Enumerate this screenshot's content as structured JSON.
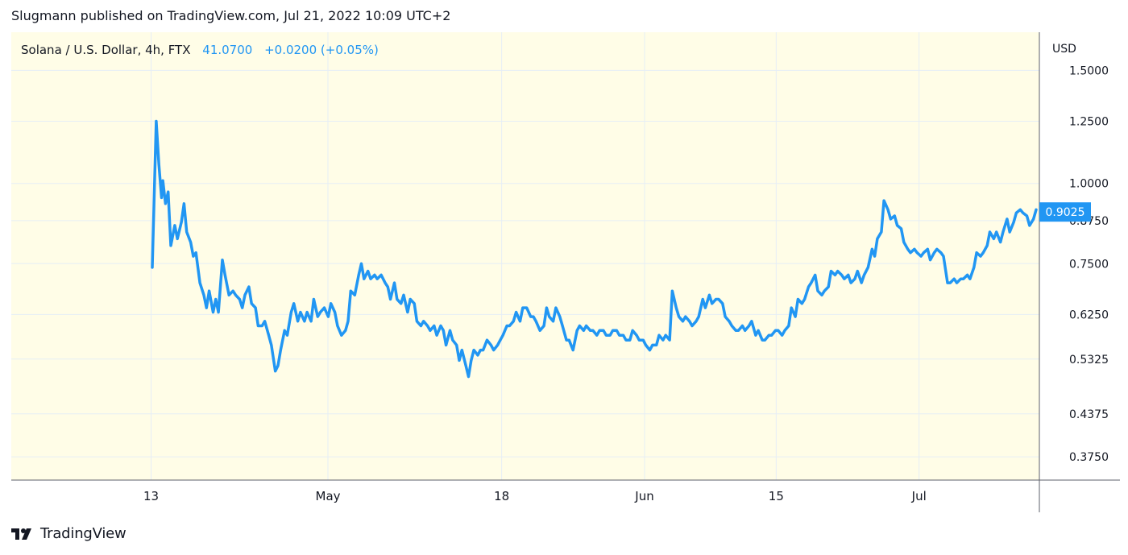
{
  "header": {
    "published_line": "Slugmann published on TradingView.com, Jul 21, 2022 10:09 UTC+2"
  },
  "legend": {
    "symbol": "Solana / U.S. Dollar, 4h, FTX",
    "last": "41.0700",
    "change": "+0.0200 (+0.05%)"
  },
  "axis": {
    "currency": "USD"
  },
  "footer": {
    "brand": "TradingView"
  },
  "colors": {
    "background": "#fffde7",
    "line": "#2196f3",
    "grid": "#e6eef6",
    "axis_text": "#131722"
  },
  "chart_data": {
    "type": "line",
    "title": "Solana / U.S. Dollar, 4h, FTX",
    "ylabel": "USD",
    "y_scale": "log",
    "ylim": [
      0.345,
      1.72
    ],
    "y_ticks": [
      "1.5000",
      "1.2500",
      "1.0000",
      "0.8750",
      "0.7500",
      "0.6250",
      "0.5325",
      "0.4375",
      "0.3750"
    ],
    "x_ticks": [
      {
        "label": "13",
        "t": 0.136
      },
      {
        "label": "May",
        "t": 0.308
      },
      {
        "label": "18",
        "t": 0.477
      },
      {
        "label": "Jun",
        "t": 0.616
      },
      {
        "label": "15",
        "t": 0.744
      },
      {
        "label": "Jul",
        "t": 0.883
      }
    ],
    "last_value_label": "0.9025",
    "grid": true,
    "series": [
      {
        "values": [
          [
            0.0,
            0.74
          ],
          [
            0.003,
            1.25
          ],
          [
            0.005,
            1.07
          ],
          [
            0.007,
            0.95
          ],
          [
            0.008,
            1.01
          ],
          [
            0.01,
            0.93
          ],
          [
            0.012,
            0.97
          ],
          [
            0.014,
            0.8
          ],
          [
            0.017,
            0.86
          ],
          [
            0.019,
            0.82
          ],
          [
            0.022,
            0.87
          ],
          [
            0.024,
            0.93
          ],
          [
            0.026,
            0.84
          ],
          [
            0.029,
            0.81
          ],
          [
            0.031,
            0.77
          ],
          [
            0.033,
            0.78
          ],
          [
            0.036,
            0.7
          ],
          [
            0.039,
            0.67
          ],
          [
            0.041,
            0.64
          ],
          [
            0.043,
            0.68
          ],
          [
            0.046,
            0.63
          ],
          [
            0.048,
            0.66
          ],
          [
            0.05,
            0.63
          ],
          [
            0.053,
            0.76
          ],
          [
            0.055,
            0.72
          ],
          [
            0.058,
            0.67
          ],
          [
            0.061,
            0.68
          ],
          [
            0.063,
            0.67
          ],
          [
            0.066,
            0.66
          ],
          [
            0.068,
            0.64
          ],
          [
            0.07,
            0.67
          ],
          [
            0.073,
            0.69
          ],
          [
            0.075,
            0.65
          ],
          [
            0.078,
            0.64
          ],
          [
            0.08,
            0.6
          ],
          [
            0.083,
            0.6
          ],
          [
            0.085,
            0.61
          ],
          [
            0.088,
            0.58
          ],
          [
            0.09,
            0.56
          ],
          [
            0.093,
            0.51
          ],
          [
            0.095,
            0.52
          ],
          [
            0.097,
            0.55
          ],
          [
            0.1,
            0.59
          ],
          [
            0.102,
            0.58
          ],
          [
            0.105,
            0.63
          ],
          [
            0.107,
            0.65
          ],
          [
            0.11,
            0.61
          ],
          [
            0.112,
            0.63
          ],
          [
            0.115,
            0.61
          ],
          [
            0.117,
            0.63
          ],
          [
            0.12,
            0.61
          ],
          [
            0.122,
            0.66
          ],
          [
            0.125,
            0.62
          ],
          [
            0.127,
            0.63
          ],
          [
            0.13,
            0.64
          ],
          [
            0.133,
            0.62
          ],
          [
            0.135,
            0.65
          ],
          [
            0.138,
            0.63
          ],
          [
            0.14,
            0.6
          ],
          [
            0.143,
            0.58
          ],
          [
            0.146,
            0.59
          ],
          [
            0.148,
            0.61
          ],
          [
            0.15,
            0.68
          ],
          [
            0.153,
            0.67
          ],
          [
            0.156,
            0.72
          ],
          [
            0.158,
            0.75
          ],
          [
            0.16,
            0.71
          ],
          [
            0.163,
            0.73
          ],
          [
            0.165,
            0.71
          ],
          [
            0.168,
            0.72
          ],
          [
            0.17,
            0.71
          ],
          [
            0.173,
            0.72
          ],
          [
            0.176,
            0.7
          ],
          [
            0.178,
            0.69
          ],
          [
            0.18,
            0.66
          ],
          [
            0.183,
            0.7
          ],
          [
            0.185,
            0.66
          ],
          [
            0.188,
            0.65
          ],
          [
            0.19,
            0.67
          ],
          [
            0.193,
            0.63
          ],
          [
            0.195,
            0.66
          ],
          [
            0.198,
            0.65
          ],
          [
            0.2,
            0.61
          ],
          [
            0.203,
            0.6
          ],
          [
            0.205,
            0.61
          ],
          [
            0.208,
            0.6
          ],
          [
            0.21,
            0.59
          ],
          [
            0.213,
            0.6
          ],
          [
            0.215,
            0.58
          ],
          [
            0.218,
            0.6
          ],
          [
            0.22,
            0.59
          ],
          [
            0.222,
            0.56
          ],
          [
            0.225,
            0.59
          ],
          [
            0.227,
            0.57
          ],
          [
            0.23,
            0.56
          ],
          [
            0.232,
            0.53
          ],
          [
            0.234,
            0.55
          ],
          [
            0.237,
            0.52
          ],
          [
            0.239,
            0.5
          ],
          [
            0.241,
            0.53
          ],
          [
            0.243,
            0.55
          ],
          [
            0.246,
            0.54
          ],
          [
            0.248,
            0.55
          ],
          [
            0.25,
            0.55
          ],
          [
            0.253,
            0.57
          ],
          [
            0.256,
            0.56
          ],
          [
            0.258,
            0.55
          ],
          [
            0.261,
            0.56
          ],
          [
            0.263,
            0.57
          ],
          [
            0.265,
            0.58
          ],
          [
            0.268,
            0.6
          ],
          [
            0.27,
            0.6
          ],
          [
            0.273,
            0.61
          ],
          [
            0.275,
            0.63
          ],
          [
            0.278,
            0.61
          ],
          [
            0.28,
            0.64
          ],
          [
            0.283,
            0.64
          ],
          [
            0.286,
            0.62
          ],
          [
            0.288,
            0.62
          ],
          [
            0.29,
            0.61
          ],
          [
            0.293,
            0.59
          ],
          [
            0.296,
            0.6
          ],
          [
            0.298,
            0.64
          ],
          [
            0.3,
            0.62
          ],
          [
            0.303,
            0.61
          ],
          [
            0.305,
            0.64
          ],
          [
            0.308,
            0.62
          ],
          [
            0.31,
            0.6
          ],
          [
            0.313,
            0.57
          ],
          [
            0.315,
            0.57
          ],
          [
            0.318,
            0.55
          ],
          [
            0.321,
            0.59
          ],
          [
            0.323,
            0.6
          ],
          [
            0.326,
            0.59
          ],
          [
            0.328,
            0.6
          ],
          [
            0.331,
            0.59
          ],
          [
            0.333,
            0.59
          ],
          [
            0.336,
            0.58
          ],
          [
            0.338,
            0.59
          ],
          [
            0.341,
            0.59
          ],
          [
            0.343,
            0.58
          ],
          [
            0.346,
            0.58
          ],
          [
            0.348,
            0.59
          ],
          [
            0.351,
            0.59
          ],
          [
            0.353,
            0.58
          ],
          [
            0.356,
            0.58
          ],
          [
            0.358,
            0.57
          ],
          [
            0.361,
            0.57
          ],
          [
            0.363,
            0.59
          ],
          [
            0.366,
            0.58
          ],
          [
            0.368,
            0.57
          ],
          [
            0.371,
            0.57
          ],
          [
            0.373,
            0.56
          ],
          [
            0.376,
            0.55
          ],
          [
            0.378,
            0.56
          ],
          [
            0.381,
            0.56
          ],
          [
            0.383,
            0.58
          ],
          [
            0.386,
            0.57
          ],
          [
            0.388,
            0.58
          ],
          [
            0.391,
            0.57
          ],
          [
            0.393,
            0.68
          ],
          [
            0.396,
            0.64
          ],
          [
            0.398,
            0.62
          ],
          [
            0.401,
            0.61
          ],
          [
            0.403,
            0.62
          ],
          [
            0.406,
            0.61
          ],
          [
            0.408,
            0.6
          ],
          [
            0.411,
            0.61
          ],
          [
            0.413,
            0.62
          ],
          [
            0.416,
            0.66
          ],
          [
            0.418,
            0.64
          ],
          [
            0.421,
            0.67
          ],
          [
            0.423,
            0.65
          ],
          [
            0.426,
            0.66
          ],
          [
            0.428,
            0.66
          ],
          [
            0.431,
            0.65
          ],
          [
            0.433,
            0.62
          ],
          [
            0.436,
            0.61
          ],
          [
            0.438,
            0.6
          ],
          [
            0.441,
            0.59
          ],
          [
            0.443,
            0.59
          ],
          [
            0.446,
            0.6
          ],
          [
            0.448,
            0.59
          ],
          [
            0.451,
            0.6
          ],
          [
            0.453,
            0.61
          ],
          [
            0.456,
            0.58
          ],
          [
            0.458,
            0.59
          ],
          [
            0.461,
            0.57
          ],
          [
            0.463,
            0.57
          ],
          [
            0.466,
            0.58
          ],
          [
            0.468,
            0.58
          ],
          [
            0.471,
            0.59
          ],
          [
            0.473,
            0.59
          ],
          [
            0.476,
            0.58
          ],
          [
            0.478,
            0.59
          ],
          [
            0.481,
            0.6
          ],
          [
            0.483,
            0.64
          ],
          [
            0.486,
            0.62
          ],
          [
            0.488,
            0.66
          ],
          [
            0.491,
            0.65
          ],
          [
            0.493,
            0.66
          ],
          [
            0.496,
            0.69
          ],
          [
            0.498,
            0.7
          ],
          [
            0.501,
            0.72
          ],
          [
            0.503,
            0.68
          ],
          [
            0.506,
            0.67
          ],
          [
            0.508,
            0.68
          ],
          [
            0.511,
            0.69
          ],
          [
            0.513,
            0.73
          ],
          [
            0.516,
            0.72
          ],
          [
            0.518,
            0.73
          ],
          [
            0.521,
            0.72
          ],
          [
            0.523,
            0.71
          ],
          [
            0.526,
            0.72
          ],
          [
            0.528,
            0.7
          ],
          [
            0.531,
            0.71
          ],
          [
            0.533,
            0.73
          ],
          [
            0.536,
            0.7
          ],
          [
            0.538,
            0.72
          ],
          [
            0.541,
            0.74
          ],
          [
            0.544,
            0.79
          ],
          [
            0.546,
            0.77
          ],
          [
            0.548,
            0.82
          ],
          [
            0.551,
            0.84
          ],
          [
            0.553,
            0.94
          ],
          [
            0.556,
            0.91
          ],
          [
            0.558,
            0.88
          ],
          [
            0.561,
            0.89
          ],
          [
            0.563,
            0.86
          ],
          [
            0.566,
            0.85
          ],
          [
            0.568,
            0.81
          ],
          [
            0.571,
            0.79
          ],
          [
            0.573,
            0.78
          ],
          [
            0.576,
            0.79
          ],
          [
            0.578,
            0.78
          ],
          [
            0.581,
            0.77
          ],
          [
            0.583,
            0.78
          ],
          [
            0.586,
            0.79
          ],
          [
            0.588,
            0.76
          ],
          [
            0.591,
            0.78
          ],
          [
            0.593,
            0.79
          ],
          [
            0.596,
            0.78
          ],
          [
            0.598,
            0.77
          ],
          [
            0.601,
            0.7
          ],
          [
            0.603,
            0.7
          ],
          [
            0.606,
            0.71
          ],
          [
            0.608,
            0.7
          ],
          [
            0.611,
            0.71
          ],
          [
            0.613,
            0.71
          ],
          [
            0.616,
            0.72
          ],
          [
            0.618,
            0.71
          ],
          [
            0.621,
            0.74
          ],
          [
            0.623,
            0.78
          ],
          [
            0.626,
            0.77
          ],
          [
            0.628,
            0.78
          ],
          [
            0.631,
            0.8
          ],
          [
            0.633,
            0.84
          ],
          [
            0.636,
            0.82
          ],
          [
            0.638,
            0.84
          ],
          [
            0.641,
            0.81
          ],
          [
            0.643,
            0.84
          ],
          [
            0.646,
            0.88
          ],
          [
            0.648,
            0.84
          ],
          [
            0.651,
            0.87
          ],
          [
            0.653,
            0.9
          ],
          [
            0.656,
            0.91
          ],
          [
            0.658,
            0.9
          ],
          [
            0.661,
            0.89
          ],
          [
            0.663,
            0.86
          ],
          [
            0.666,
            0.88
          ],
          [
            0.668,
            0.91
          ]
        ]
      }
    ]
  }
}
